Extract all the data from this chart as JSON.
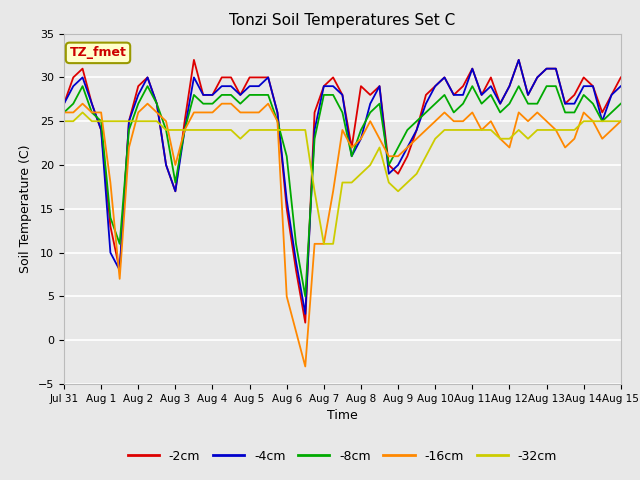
{
  "title": "Tonzi Soil Temperatures Set C",
  "xlabel": "Time",
  "ylabel": "Soil Temperature (C)",
  "ylim": [
    -5,
    35
  ],
  "xlim": [
    0,
    15
  ],
  "xtick_labels": [
    "Jul 31",
    "Aug 1",
    "Aug 2",
    "Aug 3",
    "Aug 4",
    "Aug 5",
    "Aug 6",
    "Aug 7",
    "Aug 8",
    "Aug 9",
    "Aug 10",
    "Aug 11",
    "Aug 12",
    "Aug 13",
    "Aug 14",
    "Aug 15"
  ],
  "ytick_values": [
    -5,
    0,
    5,
    10,
    15,
    20,
    25,
    30,
    35
  ],
  "annotation_text": "TZ_fmet",
  "annotation_box_facecolor": "#ffffcc",
  "annotation_text_color": "#cc0000",
  "annotation_edge_color": "#999900",
  "background_color": "#e8e8e8",
  "plot_bg_color": "#e8e8e8",
  "grid_color": "#ffffff",
  "linewidth": 1.3,
  "legend_entries": [
    "-2cm",
    "-4cm",
    "-8cm",
    "-16cm",
    "-32cm"
  ],
  "legend_colors": [
    "#dd0000",
    "#0000cc",
    "#00aa00",
    "#ff8800",
    "#cccc00"
  ],
  "series_colors": {
    "-2cm": "#dd0000",
    "-4cm": "#0000cc",
    "-8cm": "#00aa00",
    "-16cm": "#ff8800",
    "-32cm": "#cccc00"
  },
  "series_x": {
    "-2cm": [
      0,
      0.25,
      0.5,
      0.75,
      1,
      1.25,
      1.5,
      1.75,
      2,
      2.25,
      2.5,
      2.75,
      3,
      3.25,
      3.5,
      3.75,
      4,
      4.25,
      4.5,
      4.75,
      5,
      5.25,
      5.5,
      5.75,
      6,
      6.25,
      6.5,
      6.75,
      7,
      7.25,
      7.5,
      7.75,
      8,
      8.25,
      8.5,
      8.75,
      9,
      9.25,
      9.5,
      9.75,
      10,
      10.25,
      10.5,
      10.75,
      11,
      11.25,
      11.5,
      11.75,
      12,
      12.25,
      12.5,
      12.75,
      13,
      13.25,
      13.5,
      13.75,
      14,
      14.25,
      14.5,
      14.75,
      15
    ],
    "-4cm": [
      0,
      0.25,
      0.5,
      0.75,
      1,
      1.25,
      1.5,
      1.75,
      2,
      2.25,
      2.5,
      2.75,
      3,
      3.25,
      3.5,
      3.75,
      4,
      4.25,
      4.5,
      4.75,
      5,
      5.25,
      5.5,
      5.75,
      6,
      6.25,
      6.5,
      6.75,
      7,
      7.25,
      7.5,
      7.75,
      8,
      8.25,
      8.5,
      8.75,
      9,
      9.25,
      9.5,
      9.75,
      10,
      10.25,
      10.5,
      10.75,
      11,
      11.25,
      11.5,
      11.75,
      12,
      12.25,
      12.5,
      12.75,
      13,
      13.25,
      13.5,
      13.75,
      14,
      14.25,
      14.5,
      14.75,
      15
    ],
    "-8cm": [
      0,
      0.25,
      0.5,
      0.75,
      1,
      1.25,
      1.5,
      1.75,
      2,
      2.25,
      2.5,
      2.75,
      3,
      3.25,
      3.5,
      3.75,
      4,
      4.25,
      4.5,
      4.75,
      5,
      5.25,
      5.5,
      5.75,
      6,
      6.25,
      6.5,
      6.75,
      7,
      7.25,
      7.5,
      7.75,
      8,
      8.25,
      8.5,
      8.75,
      9,
      9.25,
      9.5,
      9.75,
      10,
      10.25,
      10.5,
      10.75,
      11,
      11.25,
      11.5,
      11.75,
      12,
      12.25,
      12.5,
      12.75,
      13,
      13.25,
      13.5,
      13.75,
      14,
      14.25,
      14.5,
      14.75,
      15
    ],
    "-16cm": [
      0,
      0.25,
      0.5,
      0.75,
      1,
      1.25,
      1.5,
      1.75,
      2,
      2.25,
      2.5,
      2.75,
      3,
      3.25,
      3.5,
      3.75,
      4,
      4.25,
      4.5,
      4.75,
      5,
      5.25,
      5.5,
      5.75,
      6,
      6.25,
      6.5,
      6.75,
      7,
      7.25,
      7.5,
      7.75,
      8,
      8.25,
      8.5,
      8.75,
      9,
      9.25,
      9.5,
      9.75,
      10,
      10.25,
      10.5,
      10.75,
      11,
      11.25,
      11.5,
      11.75,
      12,
      12.25,
      12.5,
      12.75,
      13,
      13.25,
      13.5,
      13.75,
      14,
      14.25,
      14.5,
      14.75,
      15
    ],
    "-32cm": [
      0,
      0.25,
      0.5,
      0.75,
      1,
      1.25,
      1.5,
      1.75,
      2,
      2.25,
      2.5,
      2.75,
      3,
      3.25,
      3.5,
      3.75,
      4,
      4.25,
      4.5,
      4.75,
      5,
      5.25,
      5.5,
      5.75,
      6,
      6.25,
      6.5,
      6.75,
      7,
      7.25,
      7.5,
      7.75,
      8,
      8.25,
      8.5,
      8.75,
      9,
      9.25,
      9.5,
      9.75,
      10,
      10.25,
      10.5,
      10.75,
      11,
      11.25,
      11.5,
      11.75,
      12,
      12.25,
      12.5,
      12.75,
      13,
      13.25,
      13.5,
      13.75,
      14,
      14.25,
      14.5,
      14.75,
      15
    ]
  },
  "series_y": {
    "-2cm": [
      27,
      30,
      31,
      27,
      24,
      13,
      8,
      25,
      29,
      30,
      27,
      20,
      17,
      25,
      32,
      28,
      28,
      30,
      30,
      28,
      30,
      30,
      30,
      26,
      15,
      8,
      2,
      26,
      29,
      30,
      28,
      22,
      29,
      28,
      29,
      20,
      19,
      21,
      24,
      28,
      29,
      30,
      28,
      29,
      31,
      28,
      30,
      27,
      29,
      32,
      28,
      30,
      31,
      31,
      27,
      28,
      30,
      29,
      26,
      28,
      30
    ],
    "-4cm": [
      27,
      29,
      30,
      27,
      24,
      10,
      8,
      25,
      28,
      30,
      27,
      20,
      17,
      24,
      30,
      28,
      28,
      29,
      29,
      28,
      29,
      29,
      30,
      26,
      16,
      9,
      3,
      24,
      29,
      29,
      28,
      21,
      23,
      27,
      29,
      19,
      20,
      22,
      24,
      27,
      29,
      30,
      28,
      28,
      31,
      28,
      29,
      27,
      29,
      32,
      28,
      30,
      31,
      31,
      27,
      27,
      29,
      29,
      25,
      28,
      29
    ],
    "-8cm": [
      26,
      27,
      29,
      26,
      25,
      14,
      11,
      24,
      27,
      29,
      27,
      24,
      18,
      24,
      28,
      27,
      27,
      28,
      28,
      27,
      28,
      28,
      28,
      25,
      21,
      11,
      5,
      23,
      28,
      28,
      26,
      21,
      24,
      26,
      27,
      20,
      22,
      24,
      25,
      26,
      27,
      28,
      26,
      27,
      29,
      27,
      28,
      26,
      27,
      29,
      27,
      27,
      29,
      29,
      26,
      26,
      28,
      27,
      25,
      26,
      27
    ],
    "-16cm": [
      26,
      26,
      27,
      26,
      26,
      18,
      7,
      22,
      26,
      27,
      26,
      25,
      20,
      24,
      26,
      26,
      26,
      27,
      27,
      26,
      26,
      26,
      27,
      25,
      5,
      1,
      -3,
      11,
      11,
      17,
      24,
      22,
      23,
      25,
      23,
      21,
      21,
      22,
      23,
      24,
      25,
      26,
      25,
      25,
      26,
      24,
      25,
      23,
      22,
      26,
      25,
      26,
      25,
      24,
      22,
      23,
      26,
      25,
      23,
      24,
      25
    ],
    "-32cm": [
      25,
      25,
      26,
      25,
      25,
      25,
      25,
      25,
      25,
      25,
      25,
      24,
      24,
      24,
      24,
      24,
      24,
      24,
      24,
      23,
      24,
      24,
      24,
      24,
      24,
      24,
      24,
      17,
      11,
      11,
      18,
      18,
      19,
      20,
      22,
      18,
      17,
      18,
      19,
      21,
      23,
      24,
      24,
      24,
      24,
      24,
      24,
      23,
      23,
      24,
      23,
      24,
      24,
      24,
      24,
      24,
      25,
      25,
      25,
      25,
      25
    ]
  }
}
